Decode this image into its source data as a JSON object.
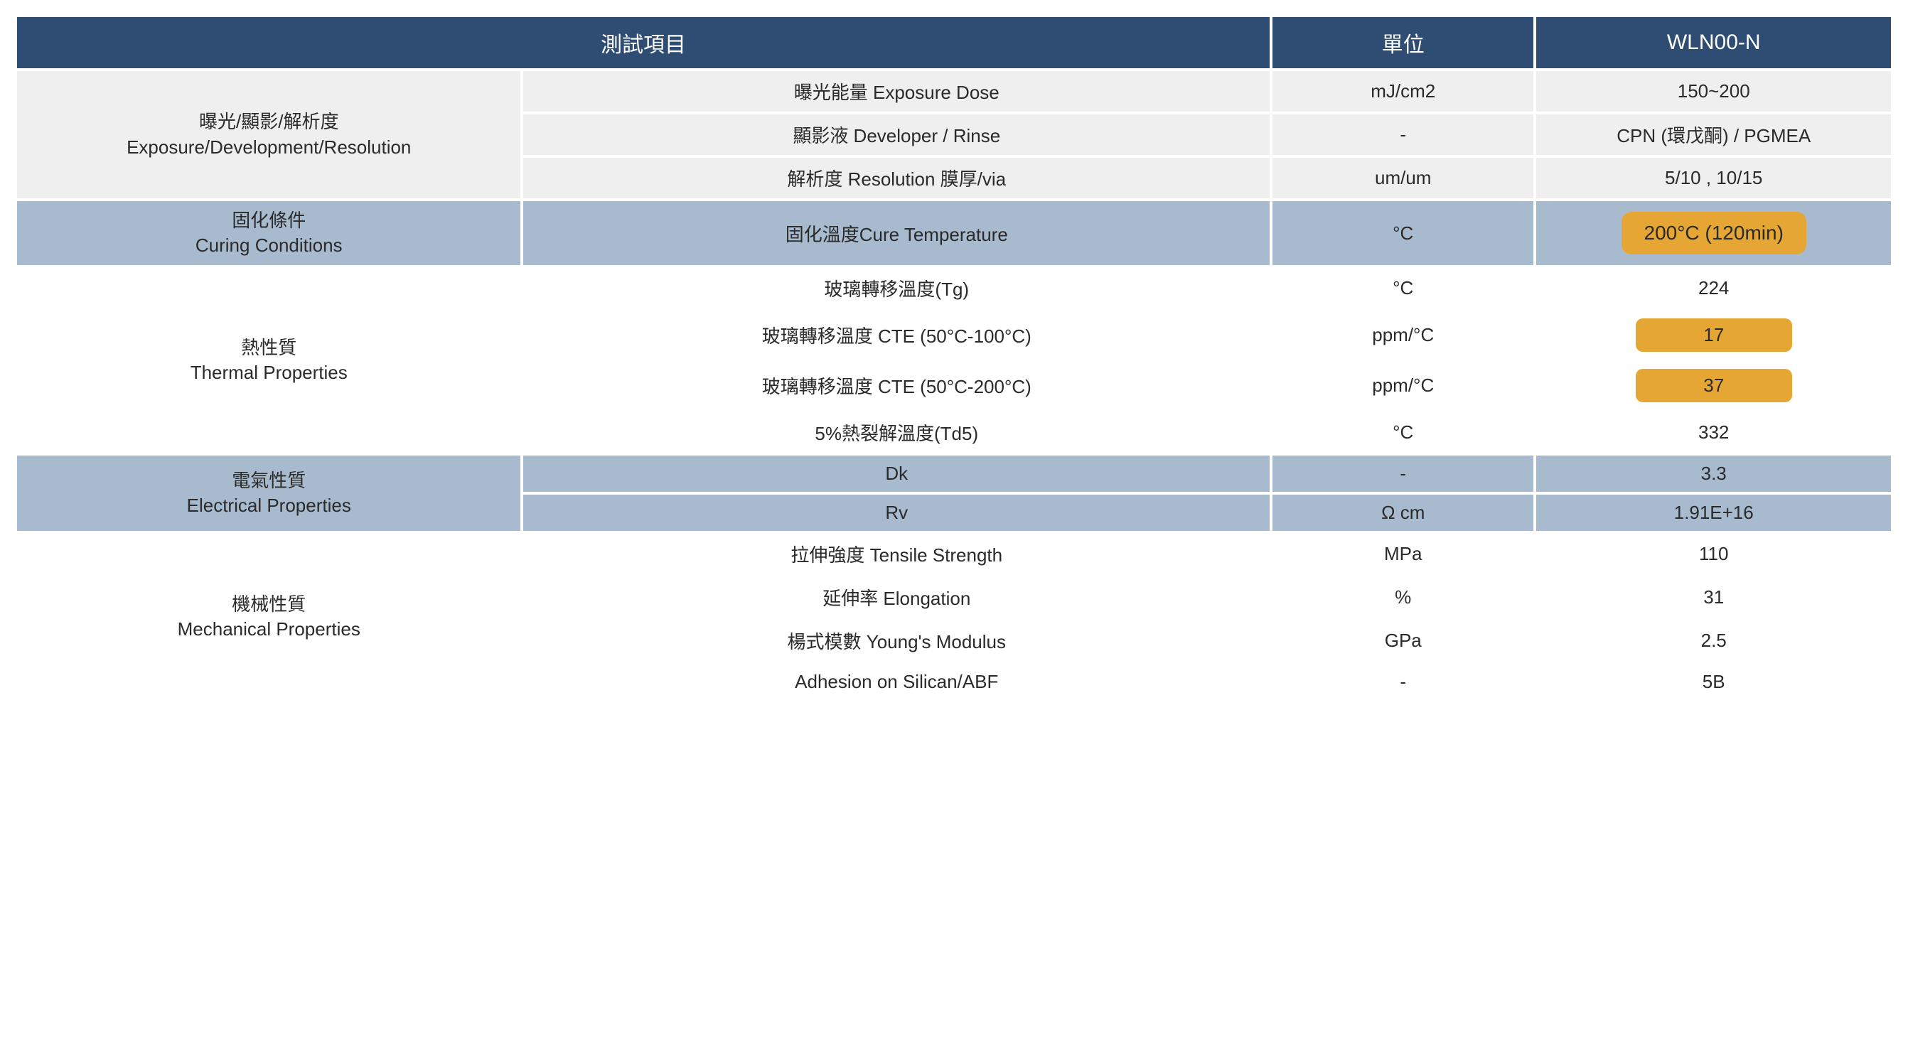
{
  "header": {
    "col1": "測試項目",
    "col2": "單位",
    "col3": "WLN00-N"
  },
  "colors": {
    "header_bg": "#2f4d72",
    "header_fg": "#ffffff",
    "grey_bg": "#efefef",
    "blue_bg": "#a8bbce",
    "white_bg": "#ffffff",
    "highlight_bg": "#e6a633",
    "text": "#2a2a2a"
  },
  "sections": [
    {
      "cat_zh": "曝光/顯影/解析度",
      "cat_en": "Exposure/Development/Resolution",
      "style": "grey",
      "rows": [
        {
          "param": "曝光能量 Exposure Dose",
          "unit": "mJ/cm2",
          "val": "150~200"
        },
        {
          "param": "顯影液 Developer / Rinse",
          "unit": "-",
          "val": "CPN (環戊酮) / PGMEA"
        },
        {
          "param": "解析度 Resolution 膜厚/via",
          "unit": "um/um",
          "val": "5/10 , 10/15"
        }
      ]
    },
    {
      "cat_zh": "固化條件",
      "cat_en": "Curing Conditions",
      "style": "blue",
      "rows": [
        {
          "param": "固化溫度Cure Temperature",
          "unit": "°C",
          "val": "200°C (120min)",
          "highlight": "big"
        }
      ]
    },
    {
      "cat_zh": "熱性質",
      "cat_en": "Thermal Properties",
      "style": "white",
      "rows": [
        {
          "param": "玻璃轉移溫度(Tg)",
          "unit": "°C",
          "val": "224"
        },
        {
          "param": "玻璃轉移溫度 CTE (50°C-100°C)",
          "unit": "ppm/°C",
          "val": "17",
          "highlight": "small"
        },
        {
          "param": "玻璃轉移溫度 CTE (50°C-200°C)",
          "unit": "ppm/°C",
          "val": "37",
          "highlight": "small"
        },
        {
          "param": "5%熱裂解溫度(Td5)",
          "unit": "°C",
          "val": "332"
        }
      ]
    },
    {
      "cat_zh": "電氣性質",
      "cat_en": "Electrical Properties",
      "style": "blue",
      "rows": [
        {
          "param": "Dk",
          "unit": "-",
          "val": "3.3"
        },
        {
          "param": "Rv",
          "unit": "Ω cm",
          "val": "1.91E+16"
        }
      ]
    },
    {
      "cat_zh": "機械性質",
      "cat_en": "Mechanical Properties",
      "style": "white",
      "rows": [
        {
          "param": "拉伸強度 Tensile Strength",
          "unit": "MPa",
          "val": "110"
        },
        {
          "param": "延伸率 Elongation",
          "unit": "%",
          "val": "31"
        },
        {
          "param": "楊式模數 Young's Modulus",
          "unit": "GPa",
          "val": "2.5"
        },
        {
          "param": "Adhesion on Silican/ABF",
          "unit": "-",
          "val": "5B"
        }
      ]
    }
  ]
}
